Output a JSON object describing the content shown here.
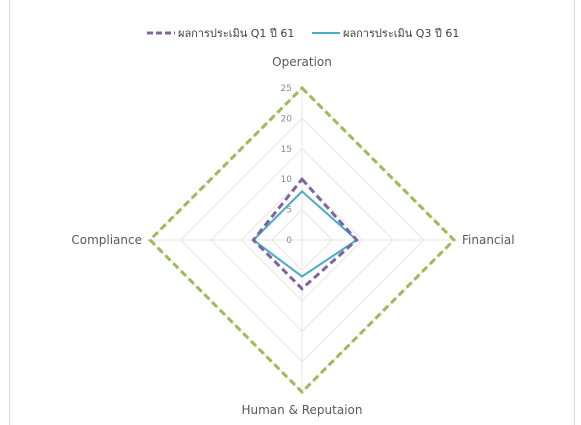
{
  "chart_data": {
    "type": "radar",
    "axes": [
      "Operation",
      "Financial",
      "Human & Reputaion",
      "Compliance"
    ],
    "ticks": [
      0,
      5,
      10,
      15,
      20,
      25
    ],
    "rlim": [
      0,
      25
    ],
    "grid": true,
    "legend_position": "top",
    "series": [
      {
        "name": "ผลการประเมิน Q1 ปี 61",
        "values": [
          10,
          9,
          8,
          8
        ],
        "color": "#8064a2",
        "style": "dashed"
      },
      {
        "name": "ผลการประเมิน Q3 ปี 61",
        "values": [
          8,
          9,
          6,
          8
        ],
        "color": "#4bacc6",
        "style": "solid"
      },
      {
        "name": "",
        "values": [
          25,
          25,
          25,
          25
        ],
        "color": "#9bbb59",
        "style": "dashed"
      }
    ]
  }
}
